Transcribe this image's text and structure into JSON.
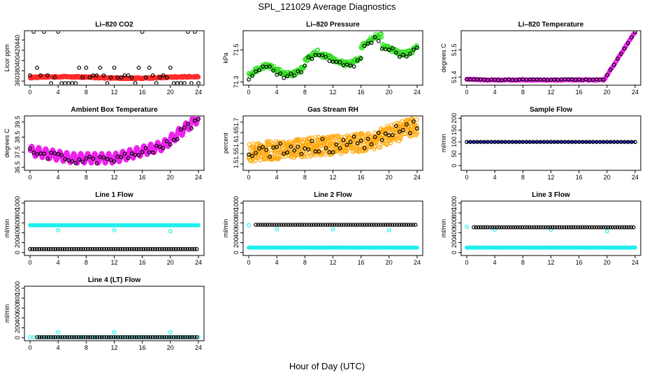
{
  "page": {
    "title": "SPL_121029  Average Diagnostics",
    "xlabel": "Hour of Day (UTC)"
  },
  "colors": {
    "red": "#ff2a2a",
    "green": "#33dd22",
    "magenta": "#ee22ee",
    "orange": "#ffaa11",
    "blue": "#1a1acc",
    "cyan": "#22eeee",
    "black": "#000000"
  },
  "chart_data": [
    {
      "id": "co2",
      "type": "scatter",
      "title": "Li–820 CO2",
      "ylabel": "Licor ppm",
      "ylim": [
        352,
        458
      ],
      "yticks": [
        360,
        380,
        400,
        420,
        440
      ],
      "xlim": [
        -0.8,
        24.8
      ],
      "xticks": [
        0,
        4,
        8,
        12,
        16,
        20,
        24
      ],
      "series": [
        {
          "name": "fine",
          "color": "red",
          "style": "dense",
          "values": "co2_fine"
        },
        {
          "name": "hourly",
          "color": "black",
          "style": "points",
          "values": "co2_hourly"
        }
      ]
    },
    {
      "id": "pressure",
      "type": "scatter",
      "title": "Li–820 Pressure",
      "ylabel": "kPa",
      "ylim": [
        71.28,
        71.62
      ],
      "yticks": [
        71.3,
        71.5
      ],
      "xlim": [
        -0.8,
        24.8
      ],
      "xticks": [
        0,
        4,
        8,
        12,
        16,
        20,
        24
      ],
      "series": [
        {
          "name": "fine",
          "color": "green",
          "style": "dense",
          "values": "pres_fine"
        },
        {
          "name": "hourly",
          "color": "black",
          "style": "points",
          "values": "pres_hourly"
        }
      ]
    },
    {
      "id": "licor_temp",
      "type": "scatter",
      "title": "Li–820 Temperature",
      "ylabel": "degrees C",
      "ylim": [
        51.37,
        51.57
      ],
      "yticks": [
        51.4,
        51.5
      ],
      "xlim": [
        -0.8,
        24.8
      ],
      "xticks": [
        0,
        4,
        8,
        12,
        16,
        20,
        24
      ],
      "series": [
        {
          "name": "fine",
          "color": "magenta",
          "style": "dense",
          "values": "lt_fine"
        },
        {
          "name": "hourly",
          "color": "black",
          "style": "points",
          "values": "lt_hourly"
        }
      ]
    },
    {
      "id": "box_temp",
      "type": "scatter",
      "title": "Ambient Box Temperature",
      "ylabel": "degrees C",
      "ylim": [
        36.3,
        39.9
      ],
      "yticks": [
        36.5,
        37.5,
        38.5,
        39.5
      ],
      "xlim": [
        -0.8,
        24.8
      ],
      "xticks": [
        0,
        4,
        8,
        12,
        16,
        20,
        24
      ],
      "series": [
        {
          "name": "fine",
          "color": "magenta",
          "style": "dense",
          "values": "bt_fine"
        },
        {
          "name": "hourly",
          "color": "black",
          "style": "points",
          "values": "bt_hourly"
        }
      ]
    },
    {
      "id": "rh",
      "type": "scatter",
      "title": "Gas Stream RH",
      "ylabel": "percent",
      "ylim": [
        1.47,
        1.73
      ],
      "yticks": [
        1.5,
        1.55,
        1.6,
        1.65,
        1.7
      ],
      "xlim": [
        -0.8,
        24.8
      ],
      "xticks": [
        0,
        4,
        8,
        12,
        16,
        20,
        24
      ],
      "series": [
        {
          "name": "fine",
          "color": "orange",
          "style": "dense",
          "values": "rh_fine"
        },
        {
          "name": "hourly",
          "color": "black",
          "style": "points",
          "values": "rh_hourly"
        }
      ]
    },
    {
      "id": "sample_flow",
      "type": "scatter",
      "title": "Sample Flow",
      "ylabel": "ml/min",
      "ylim": [
        -20,
        210
      ],
      "yticks": [
        0,
        50,
        100,
        150,
        200
      ],
      "xlim": [
        -0.8,
        24.8
      ],
      "xticks": [
        0,
        4,
        8,
        12,
        16,
        20,
        24
      ],
      "series": [
        {
          "name": "fine",
          "color": "blue",
          "style": "line",
          "values": "sf_fine"
        },
        {
          "name": "hourly",
          "color": "black",
          "style": "points",
          "values": "sf_hourly"
        }
      ]
    },
    {
      "id": "line1",
      "type": "scatter",
      "title": "Line 1 Flow",
      "ylabel": "ml/min",
      "ylim": [
        -60,
        1040
      ],
      "yticks": [
        0,
        200,
        400,
        600,
        800,
        1000
      ],
      "xlim": [
        -0.8,
        24.8
      ],
      "xticks": [
        0,
        4,
        8,
        12,
        16,
        20,
        24
      ],
      "series": [
        {
          "name": "line_flow",
          "color": "cyan",
          "style": "points",
          "values": "l1_cyan"
        },
        {
          "name": "other",
          "color": "black",
          "style": "points",
          "values": "l1_black"
        }
      ]
    },
    {
      "id": "line2",
      "type": "scatter",
      "title": "Line 2 Flow",
      "ylabel": "ml/min",
      "ylim": [
        -60,
        1040
      ],
      "yticks": [
        0,
        200,
        400,
        600,
        800,
        1000
      ],
      "xlim": [
        -0.8,
        24.8
      ],
      "xticks": [
        0,
        4,
        8,
        12,
        16,
        20,
        24
      ],
      "series": [
        {
          "name": "line_flow",
          "color": "cyan",
          "style": "points",
          "values": "l2_cyan"
        },
        {
          "name": "other",
          "color": "black",
          "style": "points",
          "values": "l2_black"
        }
      ]
    },
    {
      "id": "line3",
      "type": "scatter",
      "title": "Line 3 Flow",
      "ylabel": "ml/min",
      "ylim": [
        -60,
        1040
      ],
      "yticks": [
        0,
        200,
        400,
        600,
        800,
        1000
      ],
      "xlim": [
        -0.8,
        24.8
      ],
      "xticks": [
        0,
        4,
        8,
        12,
        16,
        20,
        24
      ],
      "series": [
        {
          "name": "line_flow",
          "color": "cyan",
          "style": "points",
          "values": "l3_cyan"
        },
        {
          "name": "other",
          "color": "black",
          "style": "points",
          "values": "l3_black"
        }
      ]
    },
    {
      "id": "line4",
      "type": "scatter",
      "title": "Line 4 (LT) Flow",
      "ylabel": "ml/min",
      "ylim": [
        -60,
        1040
      ],
      "yticks": [
        0,
        200,
        400,
        600,
        800,
        1000
      ],
      "xlim": [
        -0.8,
        24.8
      ],
      "xticks": [
        0,
        4,
        8,
        12,
        16,
        20,
        24
      ],
      "series": [
        {
          "name": "line_flow",
          "color": "cyan",
          "style": "points",
          "values": "l4_cyan"
        },
        {
          "name": "other",
          "color": "black",
          "style": "points",
          "values": "l4_black"
        }
      ]
    }
  ],
  "series_values": {
    "co2_fine": {
      "kind": "func",
      "f": "co2fine"
    },
    "co2_hourly": {
      "kind": "func",
      "f": "co2hourly"
    },
    "pres_fine": {
      "kind": "func",
      "f": "presfine"
    },
    "pres_hourly": {
      "kind": "func",
      "f": "preshourly"
    },
    "lt_fine": {
      "kind": "func",
      "f": "ltfine"
    },
    "lt_hourly": {
      "kind": "func",
      "f": "lthourly"
    },
    "bt_fine": {
      "kind": "func",
      "f": "btfine"
    },
    "bt_hourly": {
      "kind": "func",
      "f": "bthourly"
    },
    "rh_fine": {
      "kind": "func",
      "f": "rhfine"
    },
    "rh_hourly": {
      "kind": "func",
      "f": "rhhourly"
    },
    "sf_fine": {
      "kind": "const",
      "y": 100,
      "step": 0.05,
      "from": 0,
      "to": 24
    },
    "sf_hourly": {
      "kind": "const",
      "y": 100,
      "step": 0.5,
      "from": 0,
      "to": 24
    },
    "l1_cyan": {
      "kind": "const",
      "y": 550,
      "step": 0.1,
      "from": 0,
      "to": 24,
      "extra": [
        [
          4,
          450
        ],
        [
          12,
          450
        ],
        [
          20,
          430
        ]
      ]
    },
    "l1_black": {
      "kind": "const",
      "y": 70,
      "step": 0.33,
      "from": 0,
      "to": 24
    },
    "l2_cyan": {
      "kind": "const",
      "y": 100,
      "step": 0.1,
      "from": 0,
      "to": 24,
      "extra": [
        [
          0,
          550
        ],
        [
          4,
          470
        ],
        [
          12,
          470
        ],
        [
          20,
          450
        ]
      ]
    },
    "l2_black": {
      "kind": "const",
      "y": 560,
      "step": 0.33,
      "from": 1,
      "to": 24
    },
    "l3_cyan": {
      "kind": "const",
      "y": 100,
      "step": 0.1,
      "from": 0,
      "to": 24,
      "extra": [
        [
          0,
          520
        ],
        [
          4,
          460
        ],
        [
          12,
          460
        ],
        [
          20,
          430
        ]
      ]
    },
    "l3_black": {
      "kind": "const",
      "y": 510,
      "step": 0.33,
      "from": 1,
      "to": 24
    },
    "l4_cyan": {
      "kind": "const",
      "y": 10,
      "step": 0.5,
      "from": 0,
      "to": 24,
      "extra": [
        [
          4,
          110
        ],
        [
          12,
          110
        ],
        [
          20,
          110
        ]
      ]
    },
    "l4_black": {
      "kind": "const",
      "y": 10,
      "step": 0.33,
      "from": 1,
      "to": 24
    }
  }
}
